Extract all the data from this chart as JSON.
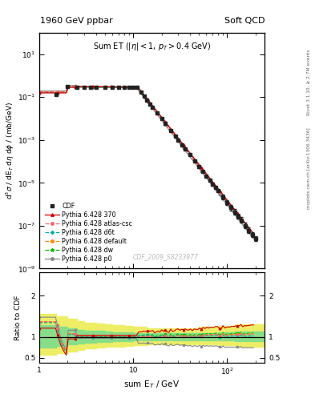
{
  "title_left": "1960 GeV ppbar",
  "title_right": "Soft QCD",
  "inner_title": "Sum ET (|\\eta| < 1, p_T > 0.4 GeV)",
  "ylabel_main": "d$^3$$\\sigma$ / dE$_T$ d$\\eta$ d$\\phi$ / (mb/GeV)",
  "ylabel_ratio": "Ratio to CDF",
  "xlabel": "sum E$_T$ / GeV",
  "watermark": "CDF_2009_S8233977",
  "right_label_top": "Rivet 3.1.10, ≥ 2.7M events",
  "right_label_bottom": "mcplots.cern.ch [arXiv:1306.3436]",
  "xlim": [
    1.0,
    250.0
  ],
  "ylim_main": [
    1e-09,
    100.0
  ],
  "ylim_ratio": [
    0.38,
    2.55
  ],
  "ratio_yticks": [
    0.5,
    1.0,
    2.0
  ],
  "colors": {
    "CDF": "#222222",
    "370": "#cc0000",
    "atlas-csc": "#ff6666",
    "d6t": "#00aaaa",
    "default": "#ff8800",
    "dw": "#00bb00",
    "p0": "#888888"
  },
  "band_green": "#88dd88",
  "band_yellow": "#eeee66"
}
